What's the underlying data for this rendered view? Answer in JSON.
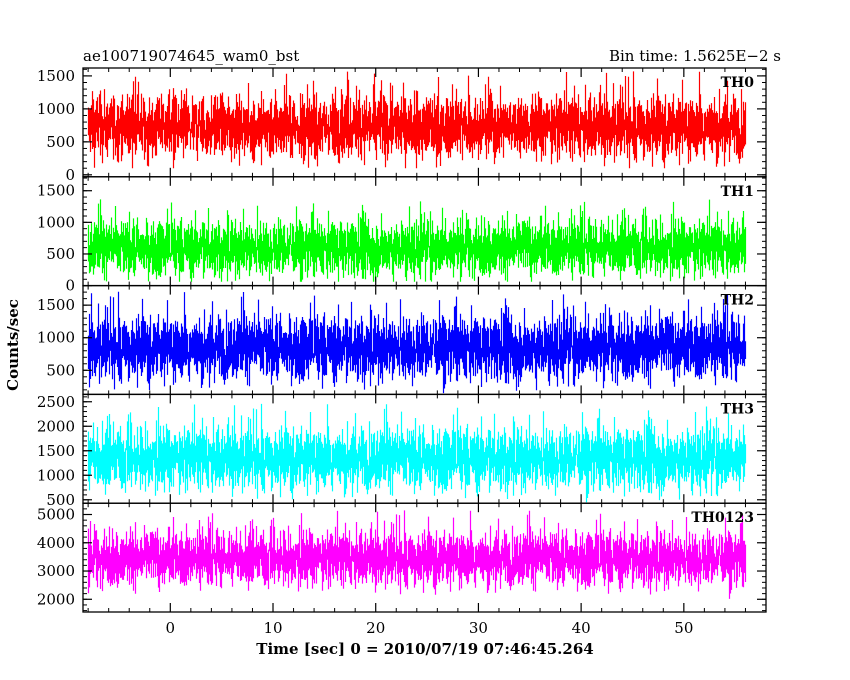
{
  "header": {
    "left": "ae100719074645_wam0_bst",
    "right": "Bin time: 1.5625E−2 s"
  },
  "chart_data": {
    "type": "line",
    "xlabel": "Time [sec] 0 = 2010/07/19 07:46:45.264",
    "ylabel": "Counts/sec",
    "xlim": [
      -8.5,
      58.0
    ],
    "x_ticks": [
      0,
      10,
      20,
      30,
      40,
      50
    ],
    "x_tick_labels": [
      "0",
      "10",
      "20",
      "30",
      "40",
      "50"
    ],
    "x_range": [
      -8.0,
      56.0
    ],
    "bin_time": 0.015625,
    "panels": [
      {
        "name": "TH0",
        "color": "#ff0000",
        "ylim": [
          -30,
          1620
        ],
        "y_ticks": [
          0,
          500,
          1000,
          1500
        ],
        "y_tick_labels": [
          "0",
          "500",
          "1000",
          "1500"
        ],
        "mean": 730,
        "spread": 470,
        "max": 1620,
        "min": 100
      },
      {
        "name": "TH1",
        "color": "#00ff00",
        "ylim": [
          0,
          1720
        ],
        "y_ticks": [
          0,
          500,
          1000,
          1500
        ],
        "y_tick_labels": [
          "0",
          "500",
          "1000",
          "1500"
        ],
        "mean": 600,
        "spread": 430,
        "max": 1600,
        "min": 60
      },
      {
        "name": "TH2",
        "color": "#0000ff",
        "ylim": [
          130,
          1800
        ],
        "y_ticks": [
          500,
          1000,
          1500
        ],
        "y_tick_labels": [
          "500",
          "1000",
          "1500"
        ],
        "mean": 850,
        "spread": 480,
        "max": 1800,
        "min": 150
      },
      {
        "name": "TH3",
        "color": "#00ffff",
        "ylim": [
          430,
          2650
        ],
        "y_ticks": [
          500,
          1000,
          1500,
          2000,
          2500
        ],
        "y_tick_labels": [
          "500",
          "1000",
          "1500",
          "2000",
          "2500"
        ],
        "mean": 1350,
        "spread": 620,
        "max": 2650,
        "min": 450
      },
      {
        "name": "TH0123",
        "color": "#ff00ff",
        "ylim": [
          1550,
          5400
        ],
        "y_ticks": [
          2000,
          3000,
          4000,
          5000
        ],
        "y_tick_labels": [
          "2000",
          "3000",
          "4000",
          "5000"
        ],
        "mean": 3450,
        "spread": 950,
        "max": 5400,
        "min": 1560
      }
    ]
  }
}
